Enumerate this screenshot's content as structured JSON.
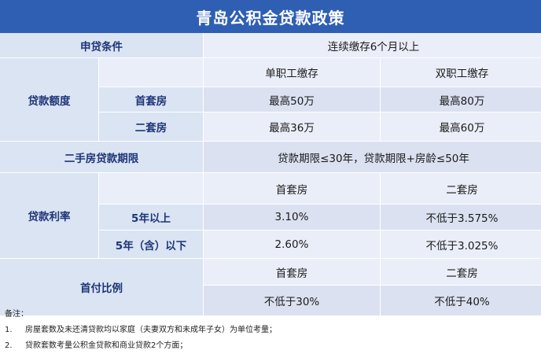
{
  "title": "青岛公积金贷款政策",
  "rows": {
    "apply_condition": {
      "label": "申贷条件",
      "value": "连续缴存6个月以上"
    },
    "loan_amount": {
      "label": "贷款额度",
      "col_single": "单职工缴存",
      "col_double": "双职工缴存",
      "first_home": {
        "label": "首套房",
        "single": "最高50万",
        "double": "最高80万"
      },
      "second_home": {
        "label": "二套房",
        "single": "最高36万",
        "double": "最高60万"
      }
    },
    "second_hand_term": {
      "label": "二手房贷款期限",
      "value": "贷款期限≤30年，贷款期限+房龄≤50年"
    },
    "loan_rate": {
      "label": "贷款利率",
      "col_first": "首套房",
      "col_second": "二套房",
      "over5": {
        "label": "5年以上",
        "first": "3.10%",
        "second": "不低于3.575%"
      },
      "under5": {
        "label": "5年（含）以下",
        "first": "2.60%",
        "second": "不低于3.025%"
      }
    },
    "down_payment": {
      "label": "首付比例",
      "col_first": "首套房",
      "col_second": "二套房",
      "first": "不低于30%",
      "second": "不低于40%"
    }
  },
  "notes": {
    "heading": "备注：",
    "items": [
      {
        "num": "1.",
        "text": "房屋套数及未还清贷款均以家庭（夫妻双方和未成年子女）为单位考量；"
      },
      {
        "num": "2.",
        "text": "贷款套数考量公积金贷款和商业贷款2个方面；"
      }
    ]
  }
}
